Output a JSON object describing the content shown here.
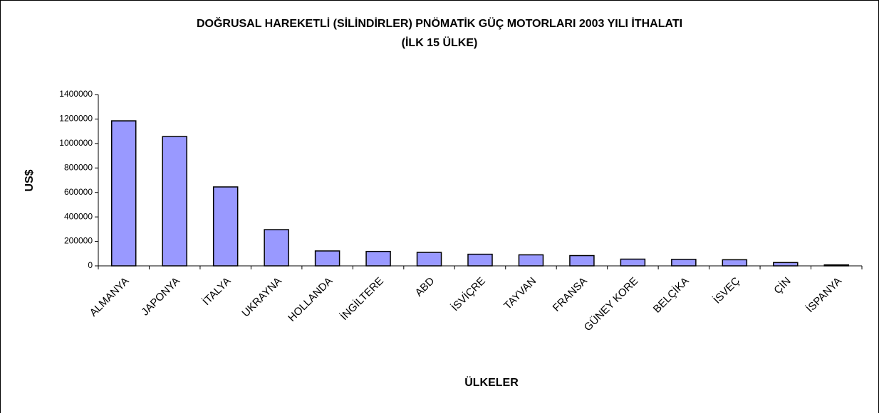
{
  "chart_data": {
    "type": "bar",
    "title": [
      "DOĞRUSAL HAREKETLİ (SİLİNDİRLER) PNÖMATİK GÜÇ MOTORLARI 2003 YILI İTHALATI",
      "(İLK 15 ÜLKE)"
    ],
    "x_label": "ÜLKELER",
    "y_label": "US$",
    "categories": [
      "ALMANYA",
      "JAPONYA",
      "İTALYA",
      "UKRAYNA",
      "HOLLANDA",
      "İNGİLTERE",
      "ABD",
      "İSVİÇRE",
      "TAYVAN",
      "FRANSA",
      "GÜNEY KORE",
      "BELÇİKA",
      "İSVEÇ",
      "ÇİN",
      "İSPANYA"
    ],
    "values": [
      1185000,
      1057000,
      645000,
      296000,
      122000,
      118000,
      110000,
      95000,
      90000,
      84000,
      55000,
      53000,
      50000,
      27000,
      8000
    ],
    "color": "#9999ff",
    "ylim": [
      0,
      1400000
    ],
    "yticks": [
      0,
      200000,
      400000,
      600000,
      800000,
      1000000,
      1200000,
      1400000
    ]
  }
}
